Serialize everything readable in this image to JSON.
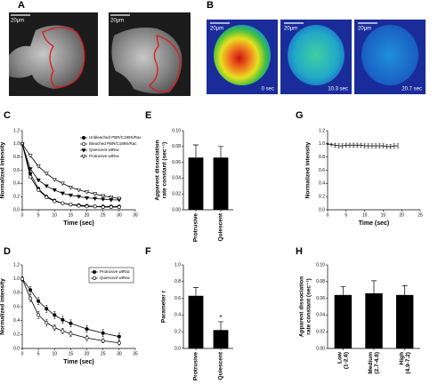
{
  "panel_labels": [
    "A",
    "B",
    "C",
    "D",
    "E",
    "F",
    "G",
    "H"
  ],
  "images": {
    "A": {
      "scale_bars": [
        "20μm",
        "20μm"
      ]
    },
    "B": {
      "scale_bars": [
        "20μm",
        "20μm",
        "20μm"
      ],
      "time_labels": [
        "0 sec",
        "10.3 sec",
        "20.7 sec"
      ]
    }
  },
  "chart_data": [
    {
      "type": "line",
      "x_label": "Time (sec)",
      "y_label": [
        "Normalized intensity"
      ],
      "xlim": [
        0,
        35
      ],
      "xticks": [
        0,
        5,
        10,
        15,
        20,
        25,
        30,
        35
      ],
      "ylim": [
        0,
        1.2
      ],
      "yticks": [
        {
          "value": 0,
          "label": "0.0"
        },
        0.2,
        0.4,
        0.6,
        0.8,
        {
          "value": 1,
          "label": "1.0"
        },
        1.2
      ],
      "legend": "top-right",
      "legend_box": false,
      "x": [
        0,
        2.5,
        5,
        7.5,
        10,
        12.5,
        15,
        17.5,
        20,
        22.5,
        25,
        27.5,
        30
      ],
      "series": [
        {
          "name": "Unbleached PBR/C189S/Rac",
          "color": "#000000",
          "marker": "filled-circle",
          "values": [
            1.0,
            0.55,
            0.32,
            0.2,
            0.14,
            0.1,
            0.08,
            0.07,
            0.06,
            0.05,
            0.05,
            0.05,
            0.05
          ]
        },
        {
          "name": "Bleached PBR/C189S/Rac",
          "color": "#000000",
          "marker": "open-circle",
          "values": [
            1.0,
            0.5,
            0.3,
            0.19,
            0.13,
            0.1,
            0.08,
            0.06,
            0.05,
            0.05,
            0.04,
            0.04,
            0.04
          ]
        },
        {
          "name": "Quiescent wtRac",
          "color": "#000000",
          "marker": "filled-triangle",
          "values": [
            1.0,
            0.62,
            0.45,
            0.36,
            0.3,
            0.25,
            0.22,
            0.2,
            0.18,
            0.17,
            0.16,
            0.15,
            0.15
          ]
        },
        {
          "name": "Protrusive wtRac",
          "color": "#000000",
          "marker": "open-triangle",
          "values": [
            1.0,
            0.82,
            0.66,
            0.55,
            0.46,
            0.4,
            0.34,
            0.3,
            0.27,
            0.24,
            0.21,
            0.19,
            0.17
          ]
        }
      ]
    },
    {
      "type": "line",
      "x_label": "Time (sec)",
      "y_label": [
        "Normalized intensity"
      ],
      "xlim": [
        0,
        35
      ],
      "xticks": [
        0,
        5,
        10,
        15,
        20,
        25,
        30,
        35
      ],
      "ylim": [
        0,
        1.2
      ],
      "yticks": [
        {
          "value": 0,
          "label": "0.0"
        },
        0.2,
        0.4,
        0.6,
        0.8,
        {
          "value": 1,
          "label": "1.0"
        },
        1.2
      ],
      "legend": "top-right",
      "legend_box": true,
      "x": [
        0,
        2.5,
        5,
        7.5,
        10,
        12.5,
        15,
        20,
        25,
        30
      ],
      "series": [
        {
          "name": "Protrusive wtRac",
          "color": "#000000",
          "marker": "filled-circle",
          "values": [
            1.0,
            0.84,
            0.68,
            0.57,
            0.48,
            0.41,
            0.36,
            0.28,
            0.22,
            0.17
          ],
          "errors": [
            0.03,
            0.05,
            0.05,
            0.05,
            0.05,
            0.05,
            0.05,
            0.05,
            0.05,
            0.05
          ]
        },
        {
          "name": "Quiescent wtRac",
          "color": "#000000",
          "marker": "open-circle",
          "values": [
            1.0,
            0.72,
            0.48,
            0.37,
            0.3,
            0.25,
            0.21,
            0.15,
            0.11,
            0.08
          ],
          "errors": [
            0.03,
            0.05,
            0.05,
            0.05,
            0.04,
            0.04,
            0.04,
            0.04,
            0.03,
            0.03
          ]
        }
      ]
    },
    {
      "type": "bar",
      "y_label": [
        "Apparent dissociation",
        "rate constant (sec⁻¹)"
      ],
      "ylim": [
        0,
        0.1
      ],
      "yticks": [
        {
          "value": 0,
          "label": "0.00"
        },
        0.02,
        0.04,
        0.06,
        0.08,
        {
          "value": 0.1,
          "label": "0.10"
        }
      ],
      "categories": [
        [
          "Protrusive"
        ],
        [
          "Quiescent"
        ]
      ],
      "color": "#000000",
      "values": [
        0.066,
        0.066
      ],
      "errors": [
        0.016,
        0.014
      ]
    },
    {
      "type": "bar",
      "y_label": [
        "Parameter r"
      ],
      "ylim": [
        0,
        1
      ],
      "yticks": [
        {
          "value": 0,
          "label": "0.0"
        },
        0.2,
        0.4,
        0.6,
        0.8,
        {
          "value": 1,
          "label": "1.0"
        }
      ],
      "categories": [
        [
          "Protrusive"
        ],
        [
          "Quiescent"
        ]
      ],
      "color": "#000000",
      "values": [
        0.63,
        0.22
      ],
      "errors": [
        0.1,
        0.1
      ],
      "annotation": "*"
    },
    {
      "type": "line",
      "x_label": "Time (sec)",
      "y_label": [
        "Normalized intensity"
      ],
      "xlim": [
        0,
        25
      ],
      "xticks": [
        0,
        5,
        10,
        15,
        20,
        25
      ],
      "ylim": [
        0,
        1.2
      ],
      "yticks": [
        {
          "value": 0,
          "label": "0.0"
        },
        0.2,
        0.4,
        0.6,
        0.8,
        {
          "value": 1,
          "label": "1.0"
        },
        1.2
      ],
      "x": [
        0,
        1,
        2,
        3,
        4,
        5,
        6,
        7,
        8,
        9,
        10,
        11,
        12,
        13,
        14,
        15,
        16,
        17,
        18,
        19
      ],
      "series": [
        {
          "color": "#000000",
          "marker": "none",
          "values": [
            1.0,
            0.99,
            0.98,
            0.97,
            0.97,
            0.98,
            0.98,
            0.98,
            0.98,
            0.98,
            0.97,
            0.97,
            0.97,
            0.97,
            0.97,
            0.97,
            0.96,
            0.96,
            0.97,
            0.97
          ],
          "errors": [
            0.01,
            0.02,
            0.03,
            0.03,
            0.03,
            0.03,
            0.03,
            0.03,
            0.03,
            0.03,
            0.03,
            0.03,
            0.03,
            0.03,
            0.03,
            0.03,
            0.03,
            0.03,
            0.03,
            0.03
          ]
        }
      ]
    },
    {
      "type": "bar",
      "y_label": [
        "Apparent dissociation",
        "rate constant (sec⁻¹)"
      ],
      "ylim": [
        0,
        0.1
      ],
      "yticks": [
        {
          "value": 0,
          "label": "0.00"
        },
        0.02,
        0.04,
        0.06,
        0.08,
        {
          "value": 0.1,
          "label": "0.10"
        }
      ],
      "categories": [
        [
          "Low",
          "(1-2.6)"
        ],
        [
          "Medium",
          "(2.7-4.8)"
        ],
        [
          "High",
          "(4.9-7.2)"
        ]
      ],
      "color": "#000000",
      "values": [
        0.064,
        0.066,
        0.064
      ],
      "errors": [
        0.01,
        0.015,
        0.011
      ]
    }
  ]
}
